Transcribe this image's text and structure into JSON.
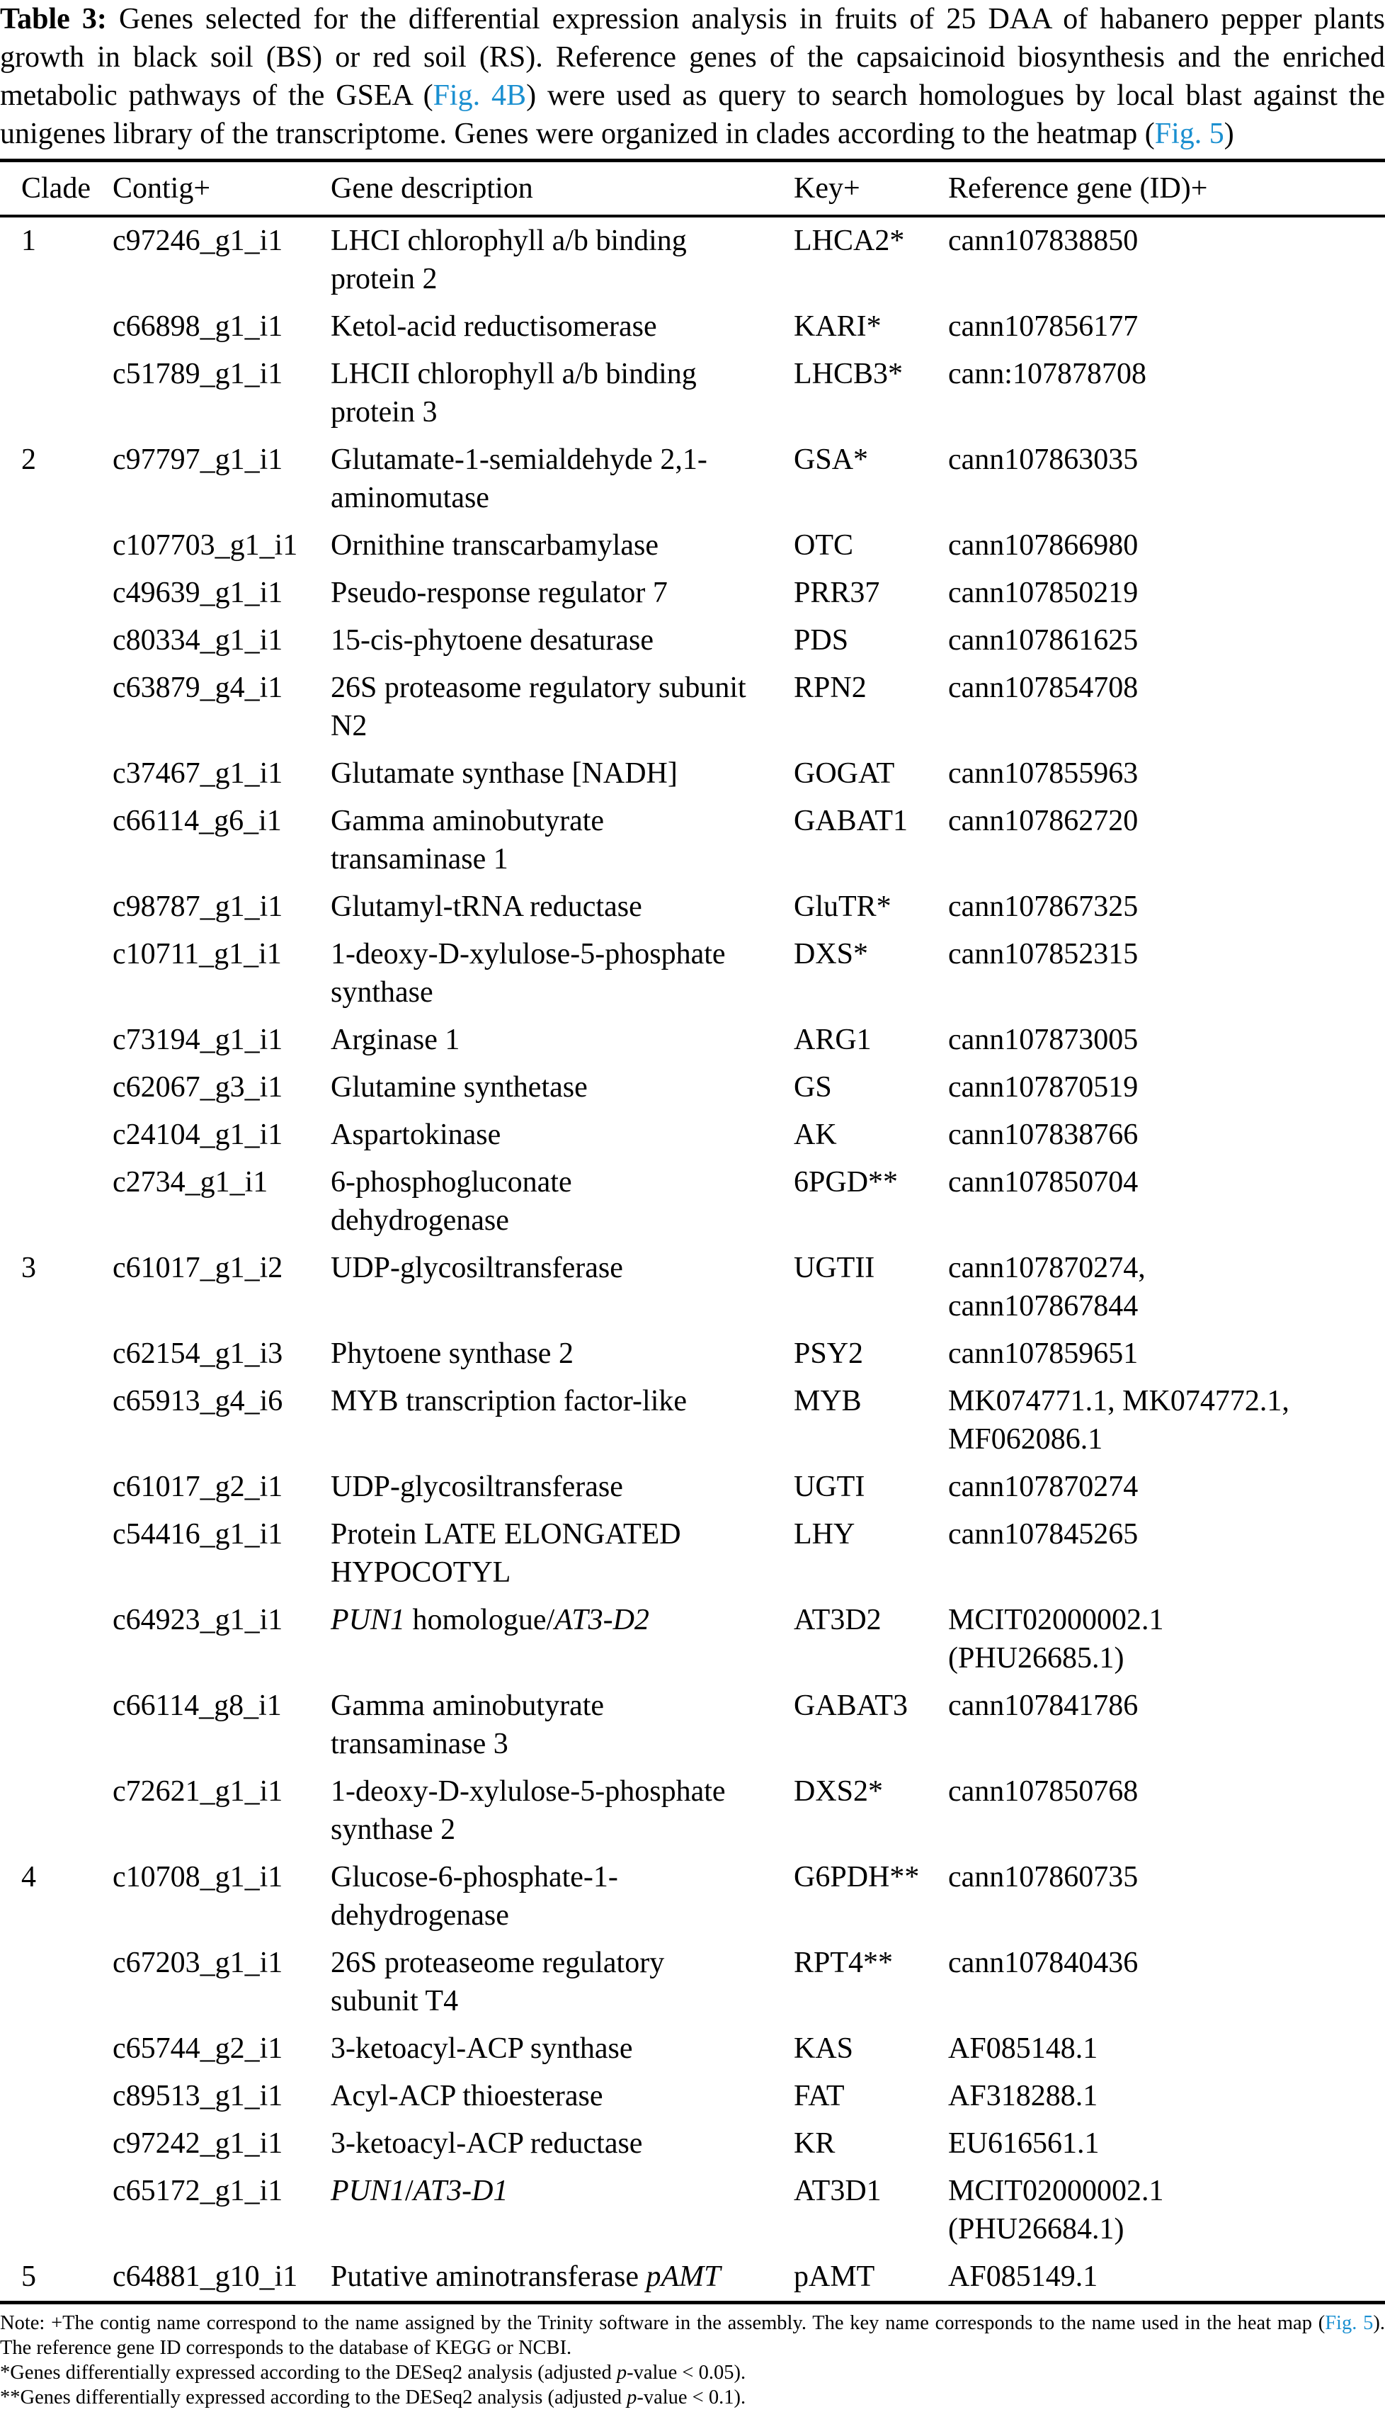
{
  "caption": {
    "label": "Table 3:",
    "segments": [
      {
        "text": " Genes selected for the differential expression analysis in fruits of 25 DAA of habanero pepper plants growth in black soil (BS) or red soil (RS). Reference genes of the capsaicinoid biosynthesis and the enriched metabolic pathways of the GSEA ("
      },
      {
        "text": "Fig. 4B",
        "link": true
      },
      {
        "text": ") were used as query to search homologues by local blast against the unigenes library of the transcriptome. Genes were organized in clades according to the heatmap ("
      },
      {
        "text": "Fig. 5",
        "link": true
      },
      {
        "text": ")"
      }
    ]
  },
  "colors": {
    "link": "#1a8fd0",
    "text": "#000000"
  },
  "table": {
    "headers": [
      "Clade",
      "Contig+",
      "Gene description",
      "Key+",
      "Reference gene (ID)+"
    ],
    "rows": [
      {
        "clade": "1",
        "contig": "c97246_g1_i1",
        "gene": "LHCI chlorophyll a/b binding\nprotein 2",
        "key": "LHCA2*",
        "ref": "cann107838850"
      },
      {
        "clade": "",
        "contig": "c66898_g1_i1",
        "gene": "Ketol-acid reductisomerase",
        "key": "KARI*",
        "ref": "cann107856177"
      },
      {
        "clade": "",
        "contig": "c51789_g1_i1",
        "gene": "LHCII chlorophyll a/b binding\nprotein 3",
        "key": "LHCB3*",
        "ref": "cann:107878708"
      },
      {
        "clade": "2",
        "contig": "c97797_g1_i1",
        "gene": "Glutamate-1-semialdehyde 2,1-\naminomutase",
        "key": "GSA*",
        "ref": "cann107863035"
      },
      {
        "clade": "",
        "contig": "c107703_g1_i1",
        "gene": "Ornithine transcarbamylase",
        "key": "OTC",
        "ref": "cann107866980"
      },
      {
        "clade": "",
        "contig": "c49639_g1_i1",
        "gene": "Pseudo-response regulator 7",
        "key": "PRR37",
        "ref": "cann107850219"
      },
      {
        "clade": "",
        "contig": "c80334_g1_i1",
        "gene": "15-cis-phytoene desaturase",
        "key": "PDS",
        "ref": "cann107861625"
      },
      {
        "clade": "",
        "contig": "c63879_g4_i1",
        "gene": "26S proteasome regulatory subunit\nN2",
        "key": "RPN2",
        "ref": "cann107854708"
      },
      {
        "clade": "",
        "contig": "c37467_g1_i1",
        "gene": "Glutamate synthase [NADH]",
        "key": "GOGAT",
        "ref": "cann107855963"
      },
      {
        "clade": "",
        "contig": "c66114_g6_i1",
        "gene": "Gamma aminobutyrate\ntransaminase 1",
        "key": "GABAT1",
        "ref": "cann107862720"
      },
      {
        "clade": "",
        "contig": "c98787_g1_i1",
        "gene": "Glutamyl-tRNA reductase",
        "key": "GluTR*",
        "ref": "cann107867325"
      },
      {
        "clade": "",
        "contig": "c10711_g1_i1",
        "gene": "1-deoxy-D-xylulose-5-phosphate\nsynthase",
        "key": "DXS*",
        "ref": "cann107852315"
      },
      {
        "clade": "",
        "contig": "c73194_g1_i1",
        "gene": "Arginase 1",
        "key": "ARG1",
        "ref": "cann107873005"
      },
      {
        "clade": "",
        "contig": "c62067_g3_i1",
        "gene": "Glutamine synthetase",
        "key": "GS",
        "ref": "cann107870519"
      },
      {
        "clade": "",
        "contig": "c24104_g1_i1",
        "gene": "Aspartokinase",
        "key": "AK",
        "ref": "cann107838766"
      },
      {
        "clade": "",
        "contig": "c2734_g1_i1",
        "gene": "6-phosphogluconate\ndehydrogenase",
        "key": "6PGD**",
        "ref": "cann107850704"
      },
      {
        "clade": "3",
        "contig": "c61017_g1_i2",
        "gene": "UDP-glycosiltransferase",
        "key": "UGTII",
        "ref": "cann107870274,\ncann107867844"
      },
      {
        "clade": "",
        "contig": "c62154_g1_i3",
        "gene": "Phytoene synthase 2",
        "key": "PSY2",
        "ref": "cann107859651"
      },
      {
        "clade": "",
        "contig": "c65913_g4_i6",
        "gene": "MYB transcription factor-like",
        "key": "MYB",
        "ref": "MK074771.1, MK074772.1,\nMF062086.1"
      },
      {
        "clade": "",
        "contig": "c61017_g2_i1",
        "gene": "UDP-glycosiltransferase",
        "key": "UGTI",
        "ref": "cann107870274"
      },
      {
        "clade": "",
        "contig": "c54416_g1_i1",
        "gene": "Protein LATE ELONGATED\nHYPOCOTYL",
        "key": "LHY",
        "ref": "cann107845265"
      },
      {
        "clade": "",
        "contig": "c64923_g1_i1",
        "gene": [
          {
            "text": "PUN1",
            "italic": true
          },
          {
            "text": " homologue/"
          },
          {
            "text": "AT3-D2",
            "italic": true
          }
        ],
        "key": "AT3D2",
        "ref": "MCIT02000002.1\n(PHU26685.1)"
      },
      {
        "clade": "",
        "contig": "c66114_g8_i1",
        "gene": "Gamma aminobutyrate\ntransaminase 3",
        "key": "GABAT3",
        "ref": "cann107841786"
      },
      {
        "clade": "",
        "contig": "c72621_g1_i1",
        "gene": "1-deoxy-D-xylulose-5-phosphate\nsynthase 2",
        "key": "DXS2*",
        "ref": "cann107850768"
      },
      {
        "clade": "4",
        "contig": "c10708_g1_i1",
        "gene": "Glucose-6-phosphate-1-\ndehydrogenase",
        "key": "G6PDH**",
        "ref": "cann107860735"
      },
      {
        "clade": "",
        "contig": "c67203_g1_i1",
        "gene": "26S proteaseome regulatory\nsubunit T4",
        "key": "RPT4**",
        "ref": "cann107840436"
      },
      {
        "clade": "",
        "contig": "c65744_g2_i1",
        "gene": "3-ketoacyl-ACP synthase",
        "key": "KAS",
        "ref": "AF085148.1"
      },
      {
        "clade": "",
        "contig": "c89513_g1_i1",
        "gene": "Acyl-ACP thioesterase",
        "key": "FAT",
        "ref": "AF318288.1"
      },
      {
        "clade": "",
        "contig": "c97242_g1_i1",
        "gene": "3-ketoacyl-ACP reductase",
        "key": "KR",
        "ref": "EU616561.1"
      },
      {
        "clade": "",
        "contig": "c65172_g1_i1",
        "gene": [
          {
            "text": "PUN1",
            "italic": true
          },
          {
            "text": "/"
          },
          {
            "text": "AT3-D1",
            "italic": true
          }
        ],
        "key": "AT3D1",
        "ref": "MCIT02000002.1\n(PHU26684.1)"
      },
      {
        "clade": "5",
        "contig": "c64881_g10_i1",
        "gene": [
          {
            "text": "Putative aminotransferase "
          },
          {
            "text": "pAMT",
            "italic": true
          }
        ],
        "key": "pAMT",
        "ref": "AF085149.1"
      }
    ]
  },
  "notes": [
    [
      {
        "text": "Note: +The contig name correspond to the name assigned by the Trinity software in the assembly. The key name corresponds to the name used in the heat map ("
      },
      {
        "text": "Fig. 5",
        "link": true
      },
      {
        "text": "). The reference gene ID corresponds to the database of KEGG or NCBI."
      }
    ],
    [
      {
        "text": "*Genes differentially expressed according to the DESeq2 analysis (adjusted "
      },
      {
        "text": "p",
        "italic": true
      },
      {
        "text": "-value < 0.05)."
      }
    ],
    [
      {
        "text": "**Genes differentially expressed according to the DESeq2 analysis (adjusted "
      },
      {
        "text": "p",
        "italic": true
      },
      {
        "text": "-value < 0.1)."
      }
    ]
  ]
}
